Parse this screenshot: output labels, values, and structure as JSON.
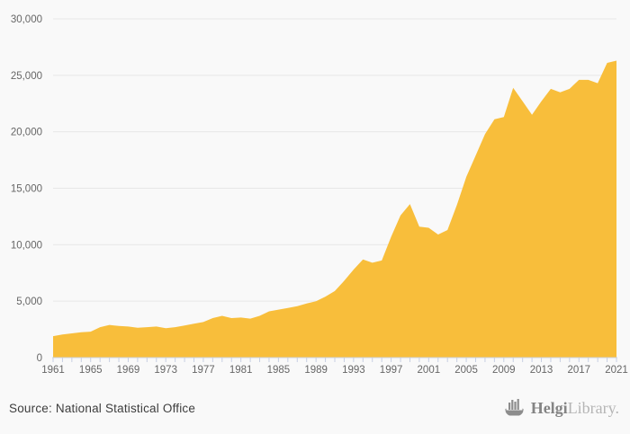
{
  "chart_data": {
    "type": "area",
    "title": "",
    "xlabel": "",
    "ylabel": "",
    "x": [
      1961,
      1962,
      1963,
      1964,
      1965,
      1966,
      1967,
      1968,
      1969,
      1970,
      1971,
      1972,
      1973,
      1974,
      1975,
      1976,
      1977,
      1978,
      1979,
      1980,
      1981,
      1982,
      1983,
      1984,
      1985,
      1986,
      1987,
      1988,
      1989,
      1990,
      1991,
      1992,
      1993,
      1994,
      1995,
      1996,
      1997,
      1998,
      1999,
      2000,
      2001,
      2002,
      2003,
      2004,
      2005,
      2006,
      2007,
      2008,
      2009,
      2010,
      2011,
      2012,
      2013,
      2014,
      2015,
      2016,
      2017,
      2018,
      2019,
      2020,
      2021
    ],
    "values": [
      1900,
      2050,
      2150,
      2250,
      2300,
      2700,
      2900,
      2800,
      2750,
      2650,
      2700,
      2750,
      2600,
      2700,
      2850,
      3000,
      3150,
      3500,
      3700,
      3500,
      3550,
      3450,
      3700,
      4100,
      4250,
      4400,
      4550,
      4800,
      5000,
      5400,
      5900,
      6800,
      7800,
      8700,
      8400,
      8600,
      10700,
      12600,
      13600,
      11600,
      11500,
      10900,
      11300,
      13500,
      16000,
      17900,
      19800,
      21100,
      21300,
      23900,
      22700,
      21500,
      22700,
      23800,
      23500,
      23800,
      24600,
      24600,
      24300,
      26100,
      26300
    ],
    "ylim": [
      0,
      30000
    ],
    "y_tick_interval": 5000,
    "y_tick_labels": [
      "0",
      "5,000",
      "10,000",
      "15,000",
      "20,000",
      "25,000",
      "30,000"
    ],
    "x_tick_labels": [
      "1961",
      "1965",
      "1969",
      "1973",
      "1977",
      "1981",
      "1985",
      "1989",
      "1993",
      "1997",
      "2001",
      "2005",
      "2009",
      "2013",
      "2017",
      "2021"
    ],
    "grid": true,
    "legend": "none",
    "series_color": "#f8be3b"
  },
  "colors": {
    "background": "#f9f9f9",
    "area_fill": "#f8be3b",
    "gridline": "#e7e7e7",
    "axis_line": "#ccd4e3",
    "tick": "#c7cfe2",
    "axis_text": "#666666",
    "source_text": "#3d3d3d",
    "logo_dark": "#848484",
    "logo_light": "#b5b5b5"
  },
  "footer": {
    "source": "Source: National Statistical Office",
    "logo_helgi": "Helgi",
    "logo_library": "Library."
  },
  "icons": {
    "logo_ship": "viking-ship-bar-chart-icon"
  }
}
